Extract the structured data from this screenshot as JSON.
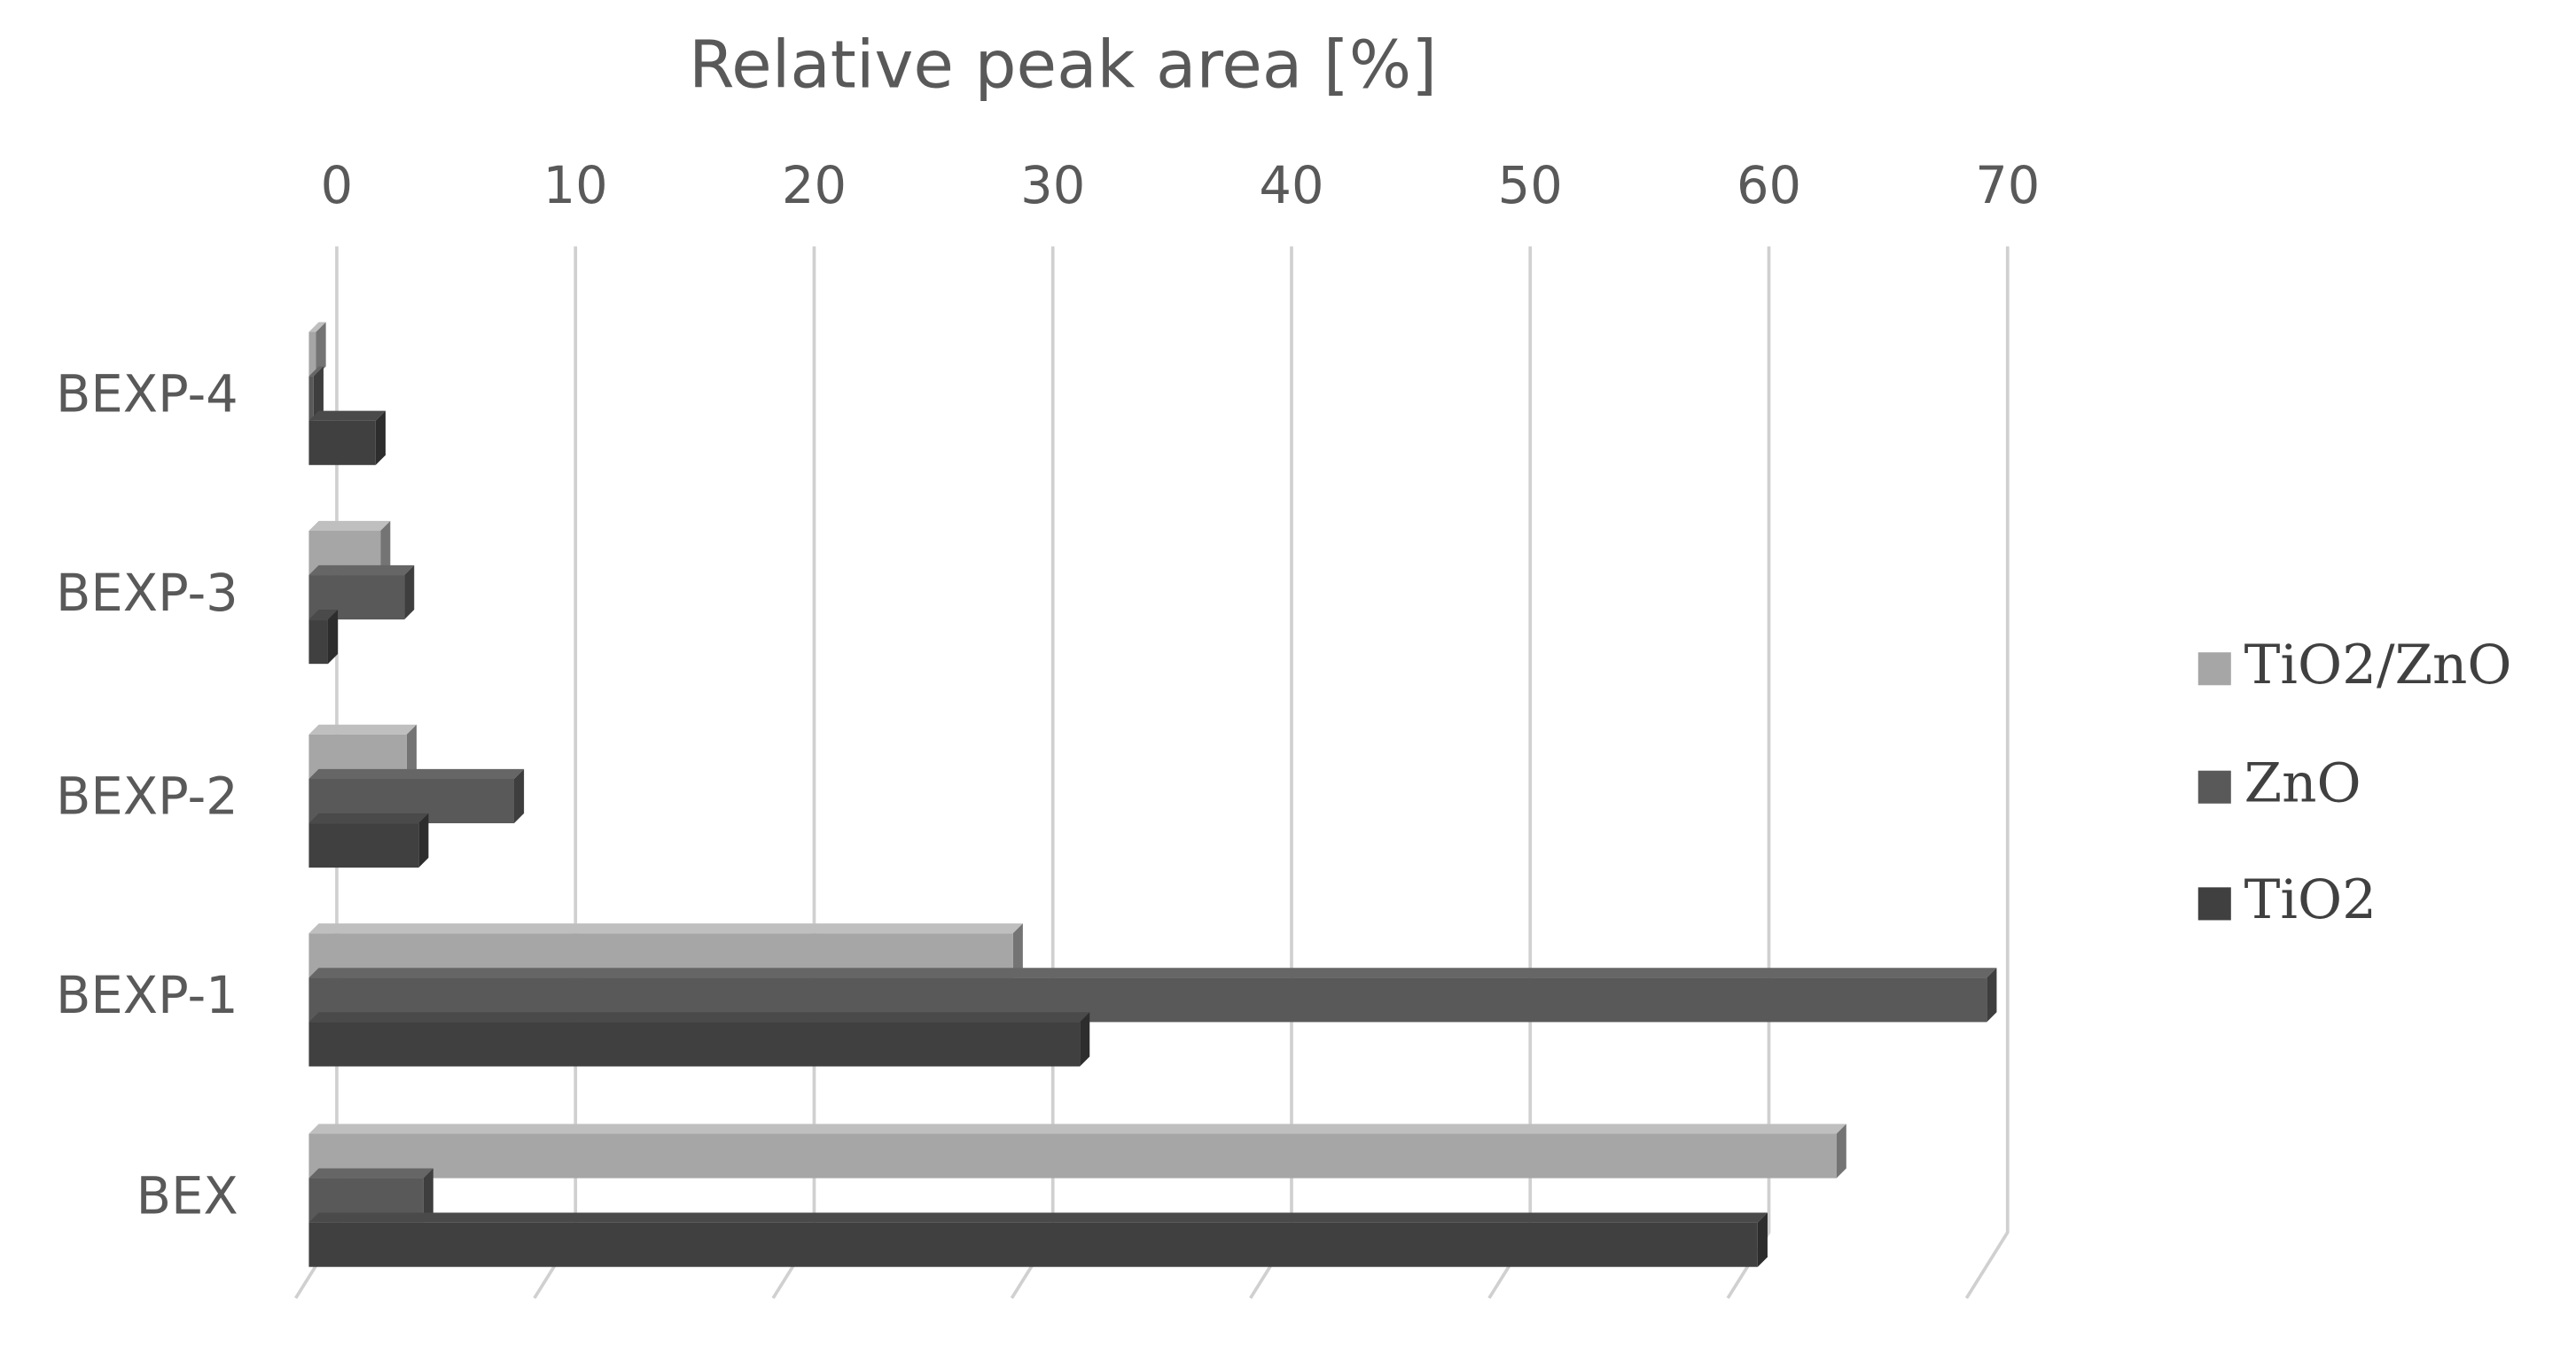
{
  "chart_data": {
    "type": "bar",
    "orientation": "horizontal",
    "title": "Relative peak area [%]",
    "categories": [
      "BEX",
      "BEXP-1",
      "BEXP-2",
      "BEXP-3",
      "BEXP-4"
    ],
    "series": [
      {
        "name": "TiO2/ZnO",
        "color": "#a6a6a6",
        "values": [
          64,
          29.5,
          4.1,
          3.0,
          0.3
        ]
      },
      {
        "name": "ZnO",
        "color": "#595959",
        "values": [
          4.8,
          70.3,
          8.6,
          4.0,
          0.2
        ]
      },
      {
        "name": "TiO2",
        "color": "#404040",
        "values": [
          60.7,
          32.3,
          4.6,
          0.8,
          2.8
        ]
      }
    ],
    "xlim": [
      0,
      70
    ],
    "xticks": [
      0,
      10,
      20,
      30,
      40,
      50,
      60,
      70
    ],
    "grid": true,
    "legend": "right"
  }
}
